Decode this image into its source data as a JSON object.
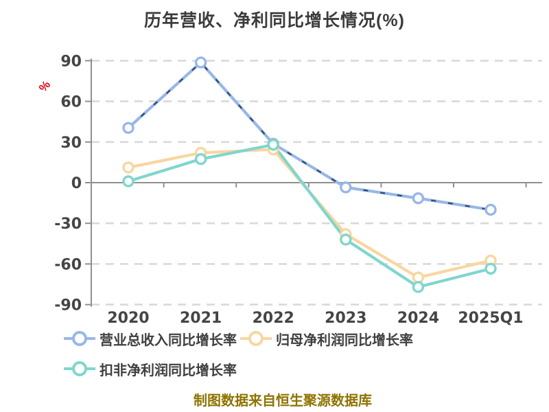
{
  "title": "历年营收、净利同比增长情况(%)",
  "y_axis_unit": "%",
  "footer": "制图数据来自恒生聚源数据库",
  "colors": {
    "background": "#ffffff",
    "title": "#3c3c3c",
    "unit_label": "#e60012",
    "tick_label": "#454545",
    "axis": "#8f8f8f",
    "grid": "#d9d9d9",
    "legend_text": "#3f3f3f",
    "footer": "#8e7300",
    "marker_fill": "#ffffff",
    "overlay_dash": "#22354f"
  },
  "chart_data": {
    "type": "line",
    "title": "历年营收、净利同比增长情况(%)",
    "ylabel": "%",
    "categories": [
      "2020",
      "2021",
      "2022",
      "2023",
      "2024",
      "2025Q1"
    ],
    "series": [
      {
        "name": "营业总收入同比增长率",
        "color": "#97b7e8",
        "overlay_dash": true,
        "values": [
          40.4,
          88.7,
          28.7,
          -3.5,
          -11.5,
          -20.0
        ]
      },
      {
        "name": "归母净利润同比增长率",
        "color": "#f8d6a0",
        "overlay_dash": false,
        "values": [
          11.2,
          22.0,
          24.5,
          -38.0,
          -70.0,
          -57.5
        ]
      },
      {
        "name": "扣非净利润同比增长率",
        "color": "#7fd6cd",
        "overlay_dash": false,
        "values": [
          1.0,
          17.4,
          28.0,
          -42.0,
          -77.0,
          -63.5
        ]
      }
    ],
    "ylim": [
      -90,
      90
    ],
    "y_ticks": [
      90,
      60,
      30,
      0,
      -30,
      -60,
      -90
    ],
    "grid": "horizontal-dashed",
    "legend_position": "bottom-left",
    "source_note": "制图数据来自恒生聚源数据库"
  }
}
